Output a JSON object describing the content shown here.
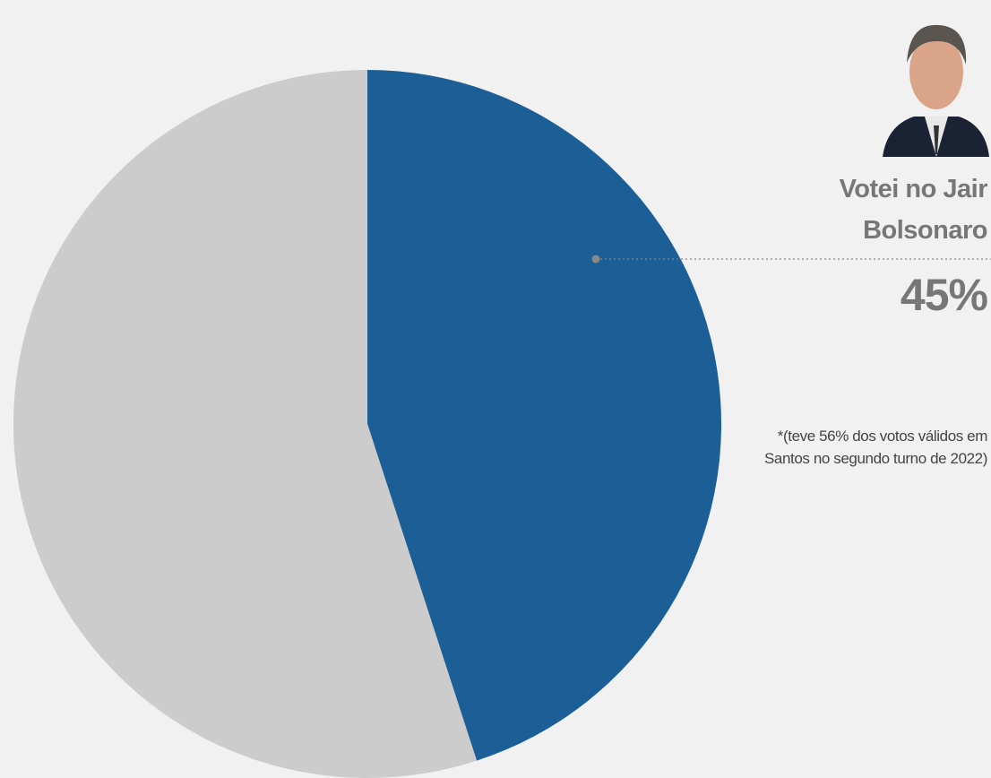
{
  "chart_data": {
    "type": "pie",
    "categories": [
      "Votei no Jair Bolsonaro",
      null
    ],
    "values": [
      45,
      55
    ],
    "value_labels": [
      "45%",
      null
    ],
    "colors": [
      "#1c5e96",
      "#cccccc"
    ],
    "annotation": "*(teve 56% dos votos válidos em Santos no segundo turno de 2022)"
  }
}
